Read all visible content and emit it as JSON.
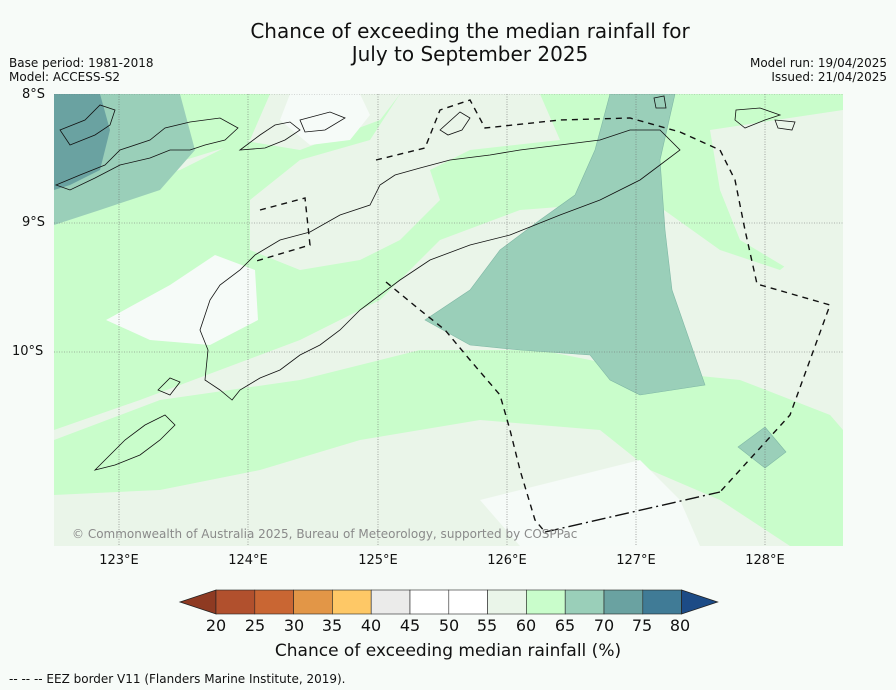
{
  "title_line1": "Chance of exceeding the median rainfall for",
  "title_line2": "July to September 2025",
  "base_period": "Base period: 1981-2018",
  "model": "Model: ACCESS-S2",
  "model_run": "Model run: 19/04/2025",
  "issued": "Issued: 21/04/2025",
  "lat_labels": [
    "8°S",
    "9°S",
    "10°S"
  ],
  "lon_labels": [
    "123°E",
    "124°E",
    "125°E",
    "126°E",
    "127°E",
    "128°E"
  ],
  "copyright": "© Commonwealth of Australia 2025, Bureau of Meteorology, supported by COSPPac",
  "colorbar": {
    "ticks": [
      "20",
      "25",
      "30",
      "35",
      "40",
      "45",
      "50",
      "55",
      "60",
      "65",
      "70",
      "75",
      "80"
    ],
    "label": "Chance of exceeding median rainfall (%)",
    "colors": [
      "#b1502d",
      "#c96633",
      "#e29647",
      "#fec866",
      "#ebebea",
      "#ffffff",
      "#ffffff",
      "#eaf5e9",
      "#c9fdcb",
      "#9acfb9",
      "#6aa2a1",
      "#407b96",
      "#1c4b86"
    ]
  },
  "footer": "-- -- -- EEZ border V11 (Flanders Marine Institute, 2019)."
}
